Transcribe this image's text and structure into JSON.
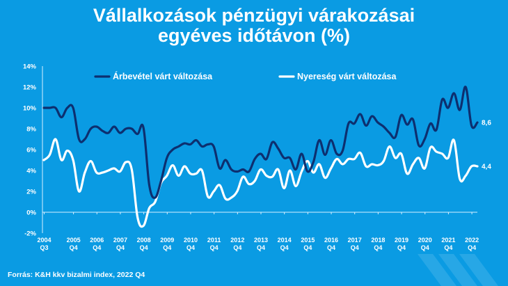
{
  "title_lines": [
    "Vállalkozások pénzügyi várakozásai",
    "egyéves időtávon (%)"
  ],
  "source": "Forrás: K&H kkv bizalmi index, 2022 Q4",
  "colors": {
    "background": "#0a9be3",
    "revenue": "#0d2f6f",
    "profit": "#ffffff",
    "text": "#ffffff"
  },
  "chart_data": {
    "type": "line",
    "title": "Vállalkozások pénzügyi várakozásai egyéves időtávon (%)",
    "ylim": [
      -2,
      14
    ],
    "y_ticks": [
      "-2%",
      "0%",
      "2%",
      "4%",
      "6%",
      "8%",
      "10%",
      "12%",
      "14%"
    ],
    "grid": false,
    "legend": "top",
    "x_labels": [
      {
        "year": "2004",
        "quarter": "Q3",
        "index": 0
      },
      {
        "year": "2005",
        "quarter": "Q4",
        "index": 5
      },
      {
        "year": "2006",
        "quarter": "Q4",
        "index": 9
      },
      {
        "year": "2007",
        "quarter": "Q4",
        "index": 13
      },
      {
        "year": "2008",
        "quarter": "Q4",
        "index": 17
      },
      {
        "year": "2009",
        "quarter": "Q4",
        "index": 21
      },
      {
        "year": "2010",
        "quarter": "Q4",
        "index": 25
      },
      {
        "year": "2011",
        "quarter": "Q4",
        "index": 29
      },
      {
        "year": "2012",
        "quarter": "Q4",
        "index": 33
      },
      {
        "year": "2013",
        "quarter": "Q4",
        "index": 37
      },
      {
        "year": "2014",
        "quarter": "Q4",
        "index": 41
      },
      {
        "year": "2015",
        "quarter": "Q4",
        "index": 45
      },
      {
        "year": "2016",
        "quarter": "Q4",
        "index": 49
      },
      {
        "year": "2017",
        "quarter": "Q4",
        "index": 53
      },
      {
        "year": "2018",
        "quarter": "Q4",
        "index": 57
      },
      {
        "year": "2019",
        "quarter": "Q4",
        "index": 61
      },
      {
        "year": "2020",
        "quarter": "Q4",
        "index": 65
      },
      {
        "year": "2021",
        "quarter": "Q4",
        "index": 69
      },
      {
        "year": "2022",
        "quarter": "Q4",
        "index": 73
      }
    ],
    "series": [
      {
        "name": "Árbevétel várt változása",
        "color": "#0d2f6f",
        "end_label": "8,6",
        "values": [
          10.0,
          10.0,
          10.0,
          9.1,
          10.0,
          10.0,
          7.0,
          7.0,
          8.0,
          8.2,
          7.8,
          7.6,
          8.2,
          7.6,
          8.0,
          8.0,
          7.5,
          8.1,
          2.6,
          1.4,
          3.0,
          5.2,
          6.0,
          6.3,
          6.6,
          6.5,
          6.9,
          6.3,
          6.5,
          6.3,
          4.2,
          5.0,
          4.1,
          3.9,
          4.1,
          3.9,
          5.1,
          5.6,
          5.1,
          6.7,
          6.1,
          5.2,
          5.2,
          4.1,
          5.6,
          3.9,
          4.8,
          6.9,
          5.5,
          6.9,
          5.6,
          5.9,
          8.5,
          8.5,
          9.4,
          8.3,
          9.2,
          8.6,
          8.2,
          7.6,
          7.2,
          9.3,
          8.4,
          8.9,
          6.4,
          7.0,
          8.5,
          7.9,
          10.8,
          10.0,
          11.4,
          9.8,
          12.0,
          8.3,
          8.6
        ]
      },
      {
        "name": "Nyereség várt változása",
        "color": "#ffffff",
        "end_label": "4,4",
        "values": [
          5.0,
          5.5,
          7.0,
          5.0,
          5.9,
          5.0,
          2.0,
          3.8,
          4.9,
          3.8,
          3.8,
          4.0,
          4.2,
          3.9,
          4.8,
          4.1,
          -0.5,
          -1.3,
          0.4,
          1.0,
          2.8,
          3.5,
          4.5,
          3.5,
          4.4,
          3.7,
          3.7,
          4.0,
          1.5,
          2.0,
          2.6,
          1.3,
          1.4,
          2.0,
          3.4,
          2.7,
          3.0,
          4.1,
          3.5,
          3.4,
          4.1,
          2.3,
          4.0,
          2.5,
          3.9,
          4.9,
          3.8,
          4.6,
          3.3,
          4.2,
          5.1,
          4.6,
          5.1,
          5.1,
          5.7,
          4.4,
          4.6,
          4.5,
          4.9,
          6.3,
          5.2,
          5.6,
          3.7,
          4.6,
          5.2,
          4.2,
          6.2,
          5.8,
          5.6,
          5.2,
          6.9,
          3.2,
          3.5,
          4.4,
          4.4
        ]
      }
    ]
  }
}
